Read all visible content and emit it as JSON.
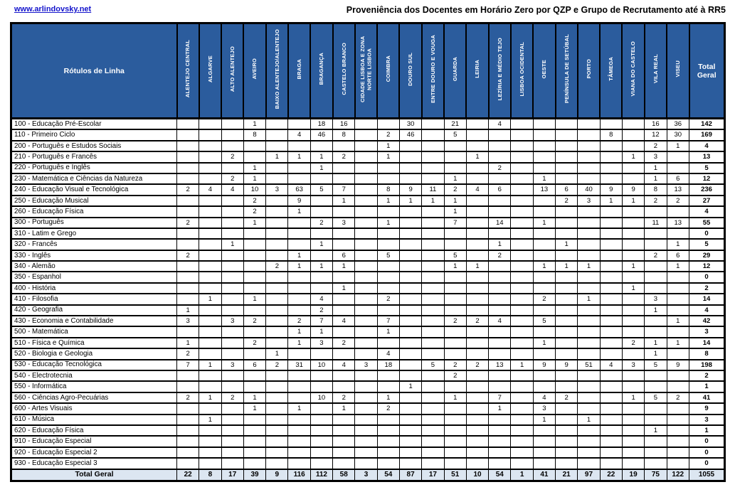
{
  "page": {
    "link": "www.arlindovsky.net",
    "title": "Proveniência dos Docentes em Horário Zero por QZP e Grupo de Recrutamento até à RR5"
  },
  "table": {
    "row_header_label": "Rótulos de Linha",
    "total_column_label": "Total Geral",
    "total_row_label": "Total Geral",
    "colors": {
      "header_bg": "#2B5C9D",
      "header_text": "#FFFFFF",
      "total_row_bg": "#DCE6F1",
      "grid": "#000000",
      "link_blue": "#1414CC"
    },
    "columns": [
      "ALENTEJO CENTRAL",
      "ALGARVE",
      "ALTO ALENTEJO",
      "AVEIRO",
      "BAIXO ALENTEJO/ALENTEJO",
      "BRAGA",
      "BRAGANÇA",
      "CASTELO BRANCO",
      "CIDADE LISBOA E ZONA NORTE LISBOA",
      "COIMBRA",
      "DOURO SUL",
      "ENTRE DOURO E VOUGA",
      "GUARDA",
      "LEIRIA",
      "LEZÍRIA E MÉDIO TEJO",
      "LISBOA OCIDENTAL",
      "OESTE",
      "PENÍNSULA DE SETÚBAL",
      "PORTO",
      "TÂMEGA",
      "VIANA DO CASTELO",
      "VILA REAL",
      "VISEU"
    ],
    "rows": [
      {
        "label": "100 - Educação Pré-Escolar",
        "values": [
          "",
          "",
          "",
          1,
          "",
          "",
          18,
          16,
          "",
          "",
          30,
          "",
          21,
          "",
          4,
          "",
          "",
          "",
          "",
          "",
          "",
          16,
          36
        ],
        "total": 142
      },
      {
        "label": "110 - Primeiro Ciclo",
        "values": [
          "",
          "",
          "",
          8,
          "",
          4,
          46,
          8,
          "",
          2,
          46,
          "",
          5,
          "",
          "",
          "",
          "",
          "",
          "",
          8,
          "",
          12,
          30
        ],
        "total": 169
      },
      {
        "label": "200 - Português e Estudos Sociais",
        "values": [
          "",
          "",
          "",
          "",
          "",
          "",
          "",
          "",
          "",
          1,
          "",
          "",
          "",
          "",
          "",
          "",
          "",
          "",
          "",
          "",
          "",
          2,
          1
        ],
        "total": 4
      },
      {
        "label": "210 - Português e Francês",
        "values": [
          "",
          "",
          2,
          "",
          1,
          1,
          1,
          2,
          "",
          1,
          "",
          "",
          "",
          1,
          "",
          "",
          "",
          "",
          "",
          "",
          1,
          3,
          ""
        ],
        "total": 13
      },
      {
        "label": "220 - Português e Inglês",
        "values": [
          "",
          "",
          "",
          1,
          "",
          "",
          1,
          "",
          "",
          "",
          "",
          "",
          "",
          "",
          2,
          "",
          "",
          "",
          "",
          "",
          "",
          1,
          ""
        ],
        "total": 5
      },
      {
        "label": "230 - Matemática e Ciências da Natureza",
        "values": [
          "",
          "",
          2,
          1,
          "",
          "",
          "",
          "",
          "",
          "",
          "",
          "",
          1,
          "",
          "",
          "",
          1,
          "",
          "",
          "",
          "",
          1,
          6
        ],
        "total": 12
      },
      {
        "label": "240 - Educação Visual e Tecnológica",
        "values": [
          2,
          4,
          4,
          10,
          3,
          63,
          5,
          7,
          "",
          8,
          9,
          11,
          2,
          4,
          6,
          "",
          13,
          6,
          40,
          9,
          9,
          8,
          13
        ],
        "total": 236
      },
      {
        "label": "250 - Educação Musical",
        "values": [
          "",
          "",
          "",
          2,
          "",
          9,
          "",
          1,
          "",
          1,
          1,
          1,
          1,
          "",
          "",
          "",
          "",
          2,
          3,
          1,
          1,
          2,
          2
        ],
        "total": 27
      },
      {
        "label": "260 - Educação Física",
        "values": [
          "",
          "",
          "",
          2,
          "",
          1,
          "",
          "",
          "",
          "",
          "",
          "",
          1,
          "",
          "",
          "",
          "",
          "",
          "",
          "",
          "",
          "",
          ""
        ],
        "total": 4
      },
      {
        "label": "300 - Português",
        "values": [
          2,
          "",
          "",
          1,
          "",
          "",
          2,
          3,
          "",
          1,
          "",
          "",
          7,
          "",
          14,
          "",
          1,
          "",
          "",
          "",
          "",
          11,
          13
        ],
        "total": 55
      },
      {
        "label": "310 - Latim e Grego",
        "values": [
          "",
          "",
          "",
          "",
          "",
          "",
          "",
          "",
          "",
          "",
          "",
          "",
          "",
          "",
          "",
          "",
          "",
          "",
          "",
          "",
          "",
          "",
          ""
        ],
        "total": 0
      },
      {
        "label": "320 - Francês",
        "values": [
          "",
          "",
          1,
          "",
          "",
          "",
          1,
          "",
          "",
          "",
          "",
          "",
          "",
          "",
          1,
          "",
          "",
          1,
          "",
          "",
          "",
          "",
          1
        ],
        "total": 5
      },
      {
        "label": "330 - Inglês",
        "values": [
          2,
          "",
          "",
          "",
          "",
          1,
          "",
          6,
          "",
          5,
          "",
          "",
          5,
          "",
          2,
          "",
          "",
          "",
          "",
          "",
          "",
          2,
          6
        ],
        "total": 29
      },
      {
        "label": "340 - Alemão",
        "values": [
          "",
          "",
          "",
          "",
          2,
          1,
          1,
          1,
          "",
          "",
          "",
          "",
          1,
          1,
          "",
          "",
          1,
          1,
          1,
          "",
          1,
          "",
          1
        ],
        "total": 12
      },
      {
        "label": "350 - Espanhol",
        "values": [
          "",
          "",
          "",
          "",
          "",
          "",
          "",
          "",
          "",
          "",
          "",
          "",
          "",
          "",
          "",
          "",
          "",
          "",
          "",
          "",
          "",
          "",
          ""
        ],
        "total": 0
      },
      {
        "label": "400 - História",
        "values": [
          "",
          "",
          "",
          "",
          "",
          "",
          "",
          1,
          "",
          "",
          "",
          "",
          "",
          "",
          "",
          "",
          "",
          "",
          "",
          "",
          1,
          "",
          ""
        ],
        "total": 2
      },
      {
        "label": "410 - Filosofia",
        "values": [
          "",
          1,
          "",
          1,
          "",
          "",
          4,
          "",
          "",
          2,
          "",
          "",
          "",
          "",
          "",
          "",
          2,
          "",
          1,
          "",
          "",
          3,
          ""
        ],
        "total": 14
      },
      {
        "label": "420 - Geografia",
        "values": [
          1,
          "",
          "",
          "",
          "",
          "",
          2,
          "",
          "",
          "",
          "",
          "",
          "",
          "",
          "",
          "",
          "",
          "",
          "",
          "",
          "",
          1,
          ""
        ],
        "total": 4
      },
      {
        "label": "430 - Economia  e Contabilidade",
        "values": [
          3,
          "",
          3,
          2,
          "",
          2,
          7,
          4,
          "",
          7,
          "",
          "",
          2,
          2,
          4,
          "",
          5,
          "",
          "",
          "",
          "",
          "",
          1
        ],
        "total": 42
      },
      {
        "label": "500 - Matemática",
        "values": [
          "",
          "",
          "",
          "",
          "",
          1,
          1,
          "",
          "",
          1,
          "",
          "",
          "",
          "",
          "",
          "",
          "",
          "",
          "",
          "",
          "",
          "",
          ""
        ],
        "total": 3
      },
      {
        "label": "510 - Física e Química",
        "values": [
          1,
          "",
          "",
          2,
          "",
          1,
          3,
          2,
          "",
          "",
          "",
          "",
          "",
          "",
          "",
          "",
          1,
          "",
          "",
          "",
          2,
          1,
          1
        ],
        "total": 14
      },
      {
        "label": "520 - Biologia e Geologia",
        "values": [
          2,
          "",
          "",
          "",
          1,
          "",
          "",
          "",
          "",
          4,
          "",
          "",
          "",
          "",
          "",
          "",
          "",
          "",
          "",
          "",
          "",
          1,
          ""
        ],
        "total": 8
      },
      {
        "label": "530 - Educação Tecnológica",
        "values": [
          7,
          1,
          3,
          6,
          2,
          31,
          10,
          4,
          3,
          18,
          "",
          5,
          2,
          2,
          13,
          1,
          9,
          9,
          51,
          4,
          3,
          5,
          9
        ],
        "total": 198
      },
      {
        "label": "540 - Electrotecnia",
        "values": [
          "",
          "",
          "",
          "",
          "",
          "",
          "",
          "",
          "",
          "",
          "",
          "",
          2,
          "",
          "",
          "",
          "",
          "",
          "",
          "",
          "",
          "",
          ""
        ],
        "total": 2
      },
      {
        "label": "550 - Informática",
        "values": [
          "",
          "",
          "",
          "",
          "",
          "",
          "",
          "",
          "",
          "",
          1,
          "",
          "",
          "",
          "",
          "",
          "",
          "",
          "",
          "",
          "",
          "",
          ""
        ],
        "total": 1
      },
      {
        "label": "560 - Ciências Agro-Pecuárias",
        "values": [
          2,
          1,
          2,
          1,
          "",
          "",
          10,
          2,
          "",
          1,
          "",
          "",
          1,
          "",
          7,
          "",
          4,
          2,
          "",
          "",
          1,
          5,
          2
        ],
        "total": 41
      },
      {
        "label": "600 - Artes Visuais",
        "values": [
          "",
          "",
          "",
          1,
          "",
          1,
          "",
          1,
          "",
          2,
          "",
          "",
          "",
          "",
          1,
          "",
          3,
          "",
          "",
          "",
          "",
          "",
          ""
        ],
        "total": 9
      },
      {
        "label": "610 - Música",
        "values": [
          "",
          1,
          "",
          "",
          "",
          "",
          "",
          "",
          "",
          "",
          "",
          "",
          "",
          "",
          "",
          "",
          1,
          "",
          1,
          "",
          "",
          "",
          ""
        ],
        "total": 3
      },
      {
        "label": "620 - Educação Física",
        "values": [
          "",
          "",
          "",
          "",
          "",
          "",
          "",
          "",
          "",
          "",
          "",
          "",
          "",
          "",
          "",
          "",
          "",
          "",
          "",
          "",
          "",
          1,
          ""
        ],
        "total": 1
      },
      {
        "label": "910 - Educação Especial",
        "values": [
          "",
          "",
          "",
          "",
          "",
          "",
          "",
          "",
          "",
          "",
          "",
          "",
          "",
          "",
          "",
          "",
          "",
          "",
          "",
          "",
          "",
          "",
          ""
        ],
        "total": 0
      },
      {
        "label": "920 - Educação Especial 2",
        "values": [
          "",
          "",
          "",
          "",
          "",
          "",
          "",
          "",
          "",
          "",
          "",
          "",
          "",
          "",
          "",
          "",
          "",
          "",
          "",
          "",
          "",
          "",
          ""
        ],
        "total": 0
      },
      {
        "label": "930 - Educação Especial 3",
        "values": [
          "",
          "",
          "",
          "",
          "",
          "",
          "",
          "",
          "",
          "",
          "",
          "",
          "",
          "",
          "",
          "",
          "",
          "",
          "",
          "",
          "",
          "",
          ""
        ],
        "total": 0
      }
    ],
    "column_totals": [
      22,
      8,
      17,
      39,
      9,
      116,
      112,
      58,
      3,
      54,
      87,
      17,
      51,
      10,
      54,
      1,
      41,
      21,
      97,
      22,
      19,
      75,
      122
    ],
    "grand_total": 1055
  }
}
